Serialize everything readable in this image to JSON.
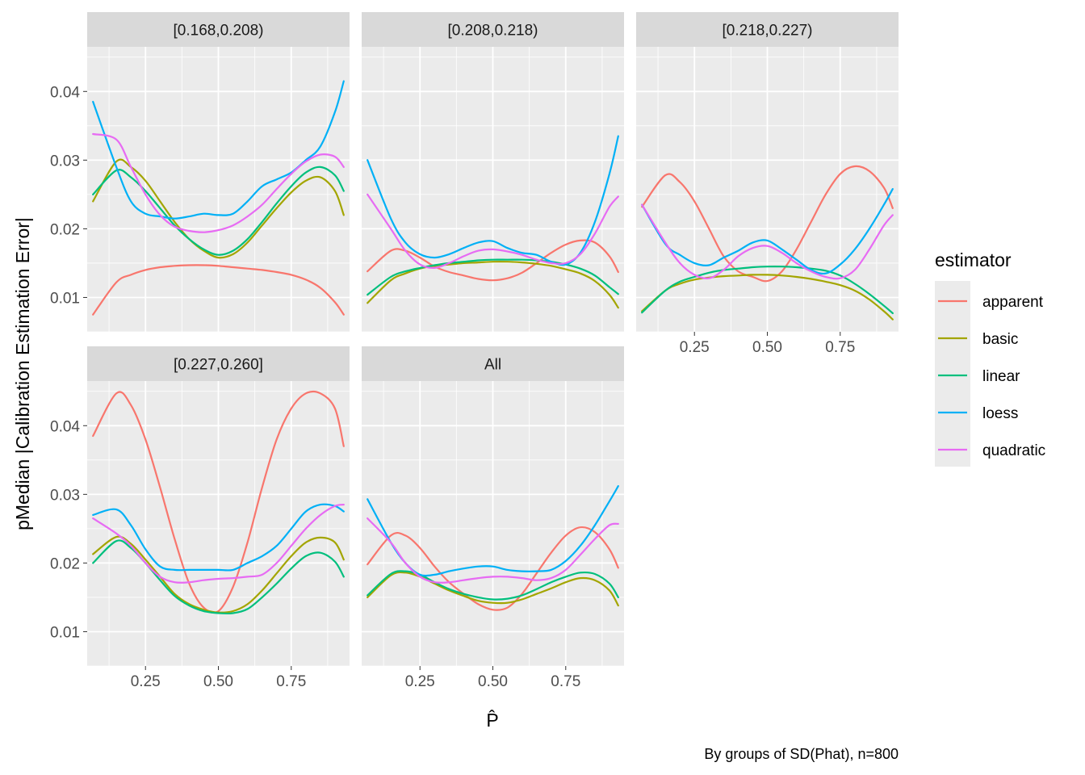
{
  "chart_data": {
    "type": "line",
    "ylabel": "pMedian |Calibration Estimation Error|",
    "xlabel": "P̂",
    "caption": "By groups of SD(Phat), n=800",
    "x_ticks": [
      "0.25",
      "0.50",
      "0.75"
    ],
    "y_ticks": [
      "0.01",
      "0.02",
      "0.03",
      "0.04"
    ],
    "xlim": [
      0.05,
      0.95
    ],
    "ylim": [
      0.005,
      0.0465
    ],
    "legend": {
      "title": "estimator",
      "position": "right"
    },
    "grid": true,
    "series_names": [
      "apparent",
      "basic",
      "linear",
      "loess",
      "quadratic"
    ],
    "colors": {
      "apparent": "#F8766D",
      "basic": "#A3A500",
      "linear": "#00BF7D",
      "loess": "#00B0F6",
      "quadratic": "#E76BF3"
    },
    "x": [
      0.07,
      0.15,
      0.2,
      0.25,
      0.3,
      0.35,
      0.4,
      0.45,
      0.5,
      0.55,
      0.6,
      0.65,
      0.7,
      0.75,
      0.8,
      0.85,
      0.9,
      0.93
    ],
    "panels": [
      {
        "label": "[0.168,0.208)",
        "series": [
          {
            "name": "apparent",
            "values": [
              0.0075,
              0.0122,
              0.0133,
              0.014,
              0.0144,
              0.0146,
              0.0147,
              0.0147,
              0.0146,
              0.0144,
              0.0142,
              0.014,
              0.0137,
              0.0133,
              0.0126,
              0.0114,
              0.0093,
              0.0075
            ]
          },
          {
            "name": "basic",
            "values": [
              0.024,
              0.0298,
              0.029,
              0.027,
              0.024,
              0.021,
              0.0185,
              0.0168,
              0.0158,
              0.0163,
              0.018,
              0.0205,
              0.023,
              0.0253,
              0.027,
              0.0275,
              0.0255,
              0.022
            ]
          },
          {
            "name": "linear",
            "values": [
              0.025,
              0.0285,
              0.0275,
              0.0255,
              0.023,
              0.0205,
              0.0185,
              0.017,
              0.0162,
              0.0168,
              0.0185,
              0.021,
              0.0237,
              0.0262,
              0.0282,
              0.029,
              0.0278,
              0.0255
            ]
          },
          {
            "name": "loess",
            "values": [
              0.0385,
              0.029,
              0.024,
              0.0222,
              0.0218,
              0.0215,
              0.0218,
              0.0222,
              0.022,
              0.0222,
              0.024,
              0.0262,
              0.0272,
              0.0282,
              0.03,
              0.032,
              0.037,
              0.0415
            ]
          },
          {
            "name": "quadratic",
            "values": [
              0.0338,
              0.033,
              0.029,
              0.025,
              0.022,
              0.0203,
              0.0197,
              0.0195,
              0.0198,
              0.0205,
              0.0218,
              0.0235,
              0.0258,
              0.028,
              0.0298,
              0.0308,
              0.0305,
              0.029
            ]
          }
        ]
      },
      {
        "label": "[0.208,0.218)",
        "series": [
          {
            "name": "apparent",
            "values": [
              0.0138,
              0.0168,
              0.0168,
              0.0158,
              0.0145,
              0.0137,
              0.0132,
              0.0127,
              0.0125,
              0.0128,
              0.0136,
              0.015,
              0.0165,
              0.0177,
              0.0183,
              0.018,
              0.016,
              0.0137
            ]
          },
          {
            "name": "basic",
            "values": [
              0.0092,
              0.0125,
              0.0135,
              0.0142,
              0.0146,
              0.0148,
              0.015,
              0.0151,
              0.0152,
              0.0152,
              0.0151,
              0.0149,
              0.0146,
              0.0141,
              0.0135,
              0.0124,
              0.0104,
              0.0085
            ]
          },
          {
            "name": "linear",
            "values": [
              0.0104,
              0.013,
              0.0138,
              0.0143,
              0.0147,
              0.015,
              0.0152,
              0.0154,
              0.0155,
              0.0155,
              0.0155,
              0.0154,
              0.0152,
              0.0148,
              0.0142,
              0.0132,
              0.0115,
              0.0105
            ]
          },
          {
            "name": "loess",
            "values": [
              0.03,
              0.0215,
              0.018,
              0.0163,
              0.0158,
              0.0163,
              0.0172,
              0.018,
              0.0182,
              0.0172,
              0.0165,
              0.0162,
              0.0152,
              0.0148,
              0.0165,
              0.021,
              0.028,
              0.0335
            ]
          },
          {
            "name": "quadratic",
            "values": [
              0.025,
              0.02,
              0.0168,
              0.0148,
              0.0143,
              0.015,
              0.016,
              0.0168,
              0.017,
              0.0167,
              0.0162,
              0.0155,
              0.015,
              0.015,
              0.0163,
              0.0193,
              0.0232,
              0.0247
            ]
          }
        ]
      },
      {
        "label": "[0.218,0.227)",
        "series": [
          {
            "name": "apparent",
            "values": [
              0.0232,
              0.0278,
              0.0268,
              0.024,
              0.02,
              0.016,
              0.0138,
              0.013,
              0.0124,
              0.0138,
              0.017,
              0.021,
              0.025,
              0.028,
              0.0291,
              0.0284,
              0.026,
              0.023
            ]
          },
          {
            "name": "basic",
            "values": [
              0.008,
              0.011,
              0.012,
              0.0126,
              0.0129,
              0.0131,
              0.0132,
              0.0133,
              0.0133,
              0.0132,
              0.013,
              0.0127,
              0.0123,
              0.0118,
              0.011,
              0.0097,
              0.008,
              0.0068
            ]
          },
          {
            "name": "linear",
            "values": [
              0.0078,
              0.011,
              0.0123,
              0.013,
              0.0136,
              0.014,
              0.0142,
              0.0144,
              0.0145,
              0.0145,
              0.0144,
              0.0142,
              0.0139,
              0.0132,
              0.012,
              0.0105,
              0.0088,
              0.0077
            ]
          },
          {
            "name": "loess",
            "values": [
              0.0235,
              0.0178,
              0.0162,
              0.015,
              0.0147,
              0.0158,
              0.0168,
              0.018,
              0.0183,
              0.017,
              0.0155,
              0.014,
              0.0135,
              0.0148,
              0.017,
              0.02,
              0.0235,
              0.0258
            ]
          },
          {
            "name": "quadratic",
            "values": [
              0.0235,
              0.018,
              0.015,
              0.0133,
              0.0128,
              0.014,
              0.016,
              0.0172,
              0.0175,
              0.0165,
              0.015,
              0.0138,
              0.013,
              0.0128,
              0.014,
              0.017,
              0.0205,
              0.022
            ]
          }
        ]
      },
      {
        "label": "[0.227,0.260]",
        "series": [
          {
            "name": "apparent",
            "values": [
              0.0385,
              0.0447,
              0.043,
              0.038,
              0.031,
              0.0235,
              0.017,
              0.0135,
              0.013,
              0.0165,
              0.023,
              0.031,
              0.038,
              0.0425,
              0.0447,
              0.0447,
              0.0425,
              0.037
            ]
          },
          {
            "name": "basic",
            "values": [
              0.0213,
              0.0238,
              0.0228,
              0.0205,
              0.018,
              0.0155,
              0.014,
              0.0132,
              0.0128,
              0.013,
              0.014,
              0.016,
              0.0185,
              0.021,
              0.023,
              0.0237,
              0.023,
              0.0205
            ]
          },
          {
            "name": "linear",
            "values": [
              0.02,
              0.0232,
              0.0222,
              0.02,
              0.0175,
              0.0152,
              0.0138,
              0.013,
              0.0127,
              0.0127,
              0.0133,
              0.015,
              0.017,
              0.0192,
              0.021,
              0.0215,
              0.0202,
              0.018
            ]
          },
          {
            "name": "loess",
            "values": [
              0.027,
              0.0278,
              0.0255,
              0.022,
              0.0195,
              0.019,
              0.019,
              0.019,
              0.019,
              0.019,
              0.02,
              0.021,
              0.0225,
              0.025,
              0.0275,
              0.0285,
              0.0283,
              0.0275
            ]
          },
          {
            "name": "quadratic",
            "values": [
              0.0265,
              0.0243,
              0.0225,
              0.02,
              0.018,
              0.0172,
              0.0172,
              0.0175,
              0.0177,
              0.0178,
              0.018,
              0.0183,
              0.02,
              0.0225,
              0.025,
              0.027,
              0.0283,
              0.0285
            ]
          }
        ]
      },
      {
        "label": "All",
        "series": [
          {
            "name": "apparent",
            "values": [
              0.0198,
              0.024,
              0.024,
              0.0222,
              0.0195,
              0.0172,
              0.0155,
              0.014,
              0.0132,
              0.0135,
              0.0155,
              0.0185,
              0.0215,
              0.024,
              0.0252,
              0.0245,
              0.022,
              0.0193
            ]
          },
          {
            "name": "basic",
            "values": [
              0.015,
              0.0182,
              0.0186,
              0.018,
              0.017,
              0.016,
              0.0152,
              0.0145,
              0.0142,
              0.0142,
              0.0147,
              0.0155,
              0.0163,
              0.0172,
              0.0178,
              0.0175,
              0.016,
              0.0138
            ]
          },
          {
            "name": "linear",
            "values": [
              0.0153,
              0.0184,
              0.0188,
              0.0183,
              0.0172,
              0.0162,
              0.0155,
              0.015,
              0.0147,
              0.0148,
              0.0153,
              0.0162,
              0.0172,
              0.018,
              0.0186,
              0.0184,
              0.017,
              0.015
            ]
          },
          {
            "name": "loess",
            "values": [
              0.0293,
              0.023,
              0.02,
              0.0183,
              0.0183,
              0.0188,
              0.0192,
              0.0195,
              0.0195,
              0.019,
              0.0188,
              0.0188,
              0.019,
              0.0203,
              0.0225,
              0.0255,
              0.029,
              0.0312
            ]
          },
          {
            "name": "quadratic",
            "values": [
              0.0265,
              0.023,
              0.02,
              0.018,
              0.0172,
              0.0172,
              0.0175,
              0.0178,
              0.018,
              0.018,
              0.0178,
              0.0175,
              0.0178,
              0.019,
              0.0212,
              0.0235,
              0.0255,
              0.0257
            ]
          }
        ]
      }
    ]
  }
}
